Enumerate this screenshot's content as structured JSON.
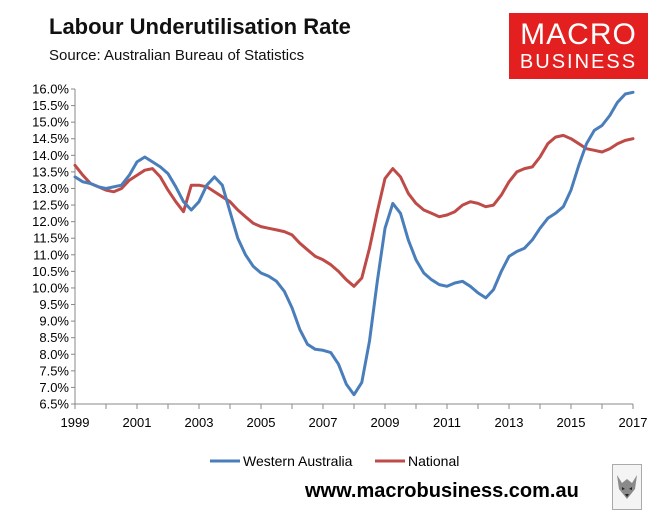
{
  "header": {
    "title": "Labour Underutilisation Rate",
    "subtitle": "Source: Australian Bureau of Statistics"
  },
  "logo": {
    "line1": "MACRO",
    "line2": "BUSINESS",
    "color": "#e3201f"
  },
  "footer": {
    "website": "www.macrobusiness.com.au",
    "badge_icon": "fox-icon"
  },
  "chart_data": {
    "type": "line",
    "xlim": [
      1999,
      2017
    ],
    "ylim": [
      6.5,
      16.0
    ],
    "x_ticks": [
      "1999",
      "2001",
      "2003",
      "2005",
      "2007",
      "2009",
      "2011",
      "2013",
      "2015",
      "2017"
    ],
    "y_ticks": [
      "6.5%",
      "7.0%",
      "7.5%",
      "8.0%",
      "8.5%",
      "9.0%",
      "9.5%",
      "10.0%",
      "10.5%",
      "11.0%",
      "11.5%",
      "12.0%",
      "12.5%",
      "13.0%",
      "13.5%",
      "14.0%",
      "14.5%",
      "15.0%",
      "15.5%",
      "16.0%"
    ],
    "grid": false,
    "legend_position": "bottom",
    "series": [
      {
        "name": "Western Australia",
        "color": "#4a7ebb",
        "points": [
          [
            1999.0,
            13.35
          ],
          [
            1999.25,
            13.2
          ],
          [
            1999.5,
            13.15
          ],
          [
            1999.75,
            13.05
          ],
          [
            2000.0,
            13.0
          ],
          [
            2000.25,
            13.05
          ],
          [
            2000.5,
            13.1
          ],
          [
            2000.75,
            13.4
          ],
          [
            2001.0,
            13.8
          ],
          [
            2001.25,
            13.95
          ],
          [
            2001.5,
            13.8
          ],
          [
            2001.75,
            13.65
          ],
          [
            2002.0,
            13.45
          ],
          [
            2002.25,
            13.05
          ],
          [
            2002.5,
            12.6
          ],
          [
            2002.75,
            12.35
          ],
          [
            2003.0,
            12.6
          ],
          [
            2003.25,
            13.1
          ],
          [
            2003.5,
            13.35
          ],
          [
            2003.75,
            13.1
          ],
          [
            2004.0,
            12.3
          ],
          [
            2004.25,
            11.5
          ],
          [
            2004.5,
            11.0
          ],
          [
            2004.75,
            10.65
          ],
          [
            2005.0,
            10.45
          ],
          [
            2005.25,
            10.35
          ],
          [
            2005.5,
            10.2
          ],
          [
            2005.75,
            9.9
          ],
          [
            2006.0,
            9.4
          ],
          [
            2006.25,
            8.75
          ],
          [
            2006.5,
            8.3
          ],
          [
            2006.75,
            8.15
          ],
          [
            2007.0,
            8.12
          ],
          [
            2007.25,
            8.05
          ],
          [
            2007.5,
            7.7
          ],
          [
            2007.75,
            7.1
          ],
          [
            2008.0,
            6.78
          ],
          [
            2008.25,
            7.15
          ],
          [
            2008.5,
            8.4
          ],
          [
            2008.75,
            10.2
          ],
          [
            2009.0,
            11.8
          ],
          [
            2009.25,
            12.55
          ],
          [
            2009.5,
            12.25
          ],
          [
            2009.75,
            11.45
          ],
          [
            2010.0,
            10.85
          ],
          [
            2010.25,
            10.45
          ],
          [
            2010.5,
            10.25
          ],
          [
            2010.75,
            10.1
          ],
          [
            2011.0,
            10.05
          ],
          [
            2011.25,
            10.15
          ],
          [
            2011.5,
            10.2
          ],
          [
            2011.75,
            10.05
          ],
          [
            2012.0,
            9.85
          ],
          [
            2012.25,
            9.7
          ],
          [
            2012.5,
            9.95
          ],
          [
            2012.75,
            10.5
          ],
          [
            2013.0,
            10.95
          ],
          [
            2013.25,
            11.1
          ],
          [
            2013.5,
            11.2
          ],
          [
            2013.75,
            11.45
          ],
          [
            2014.0,
            11.8
          ],
          [
            2014.25,
            12.1
          ],
          [
            2014.5,
            12.25
          ],
          [
            2014.75,
            12.45
          ],
          [
            2015.0,
            12.95
          ],
          [
            2015.25,
            13.7
          ],
          [
            2015.5,
            14.35
          ],
          [
            2015.75,
            14.75
          ],
          [
            2016.0,
            14.9
          ],
          [
            2016.25,
            15.2
          ],
          [
            2016.5,
            15.6
          ],
          [
            2016.75,
            15.85
          ],
          [
            2017.0,
            15.9
          ]
        ]
      },
      {
        "name": "National",
        "color": "#be4b48",
        "points": [
          [
            1999.0,
            13.7
          ],
          [
            1999.25,
            13.4
          ],
          [
            1999.5,
            13.15
          ],
          [
            1999.75,
            13.05
          ],
          [
            2000.0,
            12.95
          ],
          [
            2000.25,
            12.9
          ],
          [
            2000.5,
            13.0
          ],
          [
            2000.75,
            13.25
          ],
          [
            2001.0,
            13.4
          ],
          [
            2001.25,
            13.55
          ],
          [
            2001.5,
            13.6
          ],
          [
            2001.75,
            13.35
          ],
          [
            2002.0,
            12.95
          ],
          [
            2002.25,
            12.6
          ],
          [
            2002.5,
            12.3
          ],
          [
            2002.75,
            13.1
          ],
          [
            2003.0,
            13.1
          ],
          [
            2003.25,
            13.05
          ],
          [
            2003.5,
            12.9
          ],
          [
            2003.75,
            12.75
          ],
          [
            2004.0,
            12.6
          ],
          [
            2004.25,
            12.35
          ],
          [
            2004.5,
            12.15
          ],
          [
            2004.75,
            11.95
          ],
          [
            2005.0,
            11.85
          ],
          [
            2005.25,
            11.8
          ],
          [
            2005.5,
            11.75
          ],
          [
            2005.75,
            11.7
          ],
          [
            2006.0,
            11.6
          ],
          [
            2006.25,
            11.35
          ],
          [
            2006.5,
            11.15
          ],
          [
            2006.75,
            10.95
          ],
          [
            2007.0,
            10.85
          ],
          [
            2007.25,
            10.7
          ],
          [
            2007.5,
            10.5
          ],
          [
            2007.75,
            10.25
          ],
          [
            2008.0,
            10.05
          ],
          [
            2008.25,
            10.3
          ],
          [
            2008.5,
            11.2
          ],
          [
            2008.75,
            12.3
          ],
          [
            2009.0,
            13.3
          ],
          [
            2009.25,
            13.6
          ],
          [
            2009.5,
            13.35
          ],
          [
            2009.75,
            12.85
          ],
          [
            2010.0,
            12.55
          ],
          [
            2010.25,
            12.35
          ],
          [
            2010.5,
            12.25
          ],
          [
            2010.75,
            12.15
          ],
          [
            2011.0,
            12.2
          ],
          [
            2011.25,
            12.3
          ],
          [
            2011.5,
            12.5
          ],
          [
            2011.75,
            12.6
          ],
          [
            2012.0,
            12.55
          ],
          [
            2012.25,
            12.45
          ],
          [
            2012.5,
            12.5
          ],
          [
            2012.75,
            12.8
          ],
          [
            2013.0,
            13.2
          ],
          [
            2013.25,
            13.5
          ],
          [
            2013.5,
            13.6
          ],
          [
            2013.75,
            13.65
          ],
          [
            2014.0,
            13.95
          ],
          [
            2014.25,
            14.35
          ],
          [
            2014.5,
            14.55
          ],
          [
            2014.75,
            14.6
          ],
          [
            2015.0,
            14.5
          ],
          [
            2015.25,
            14.35
          ],
          [
            2015.5,
            14.2
          ],
          [
            2015.75,
            14.15
          ],
          [
            2016.0,
            14.1
          ],
          [
            2016.25,
            14.2
          ],
          [
            2016.5,
            14.35
          ],
          [
            2016.75,
            14.45
          ],
          [
            2017.0,
            14.5
          ]
        ]
      }
    ]
  }
}
